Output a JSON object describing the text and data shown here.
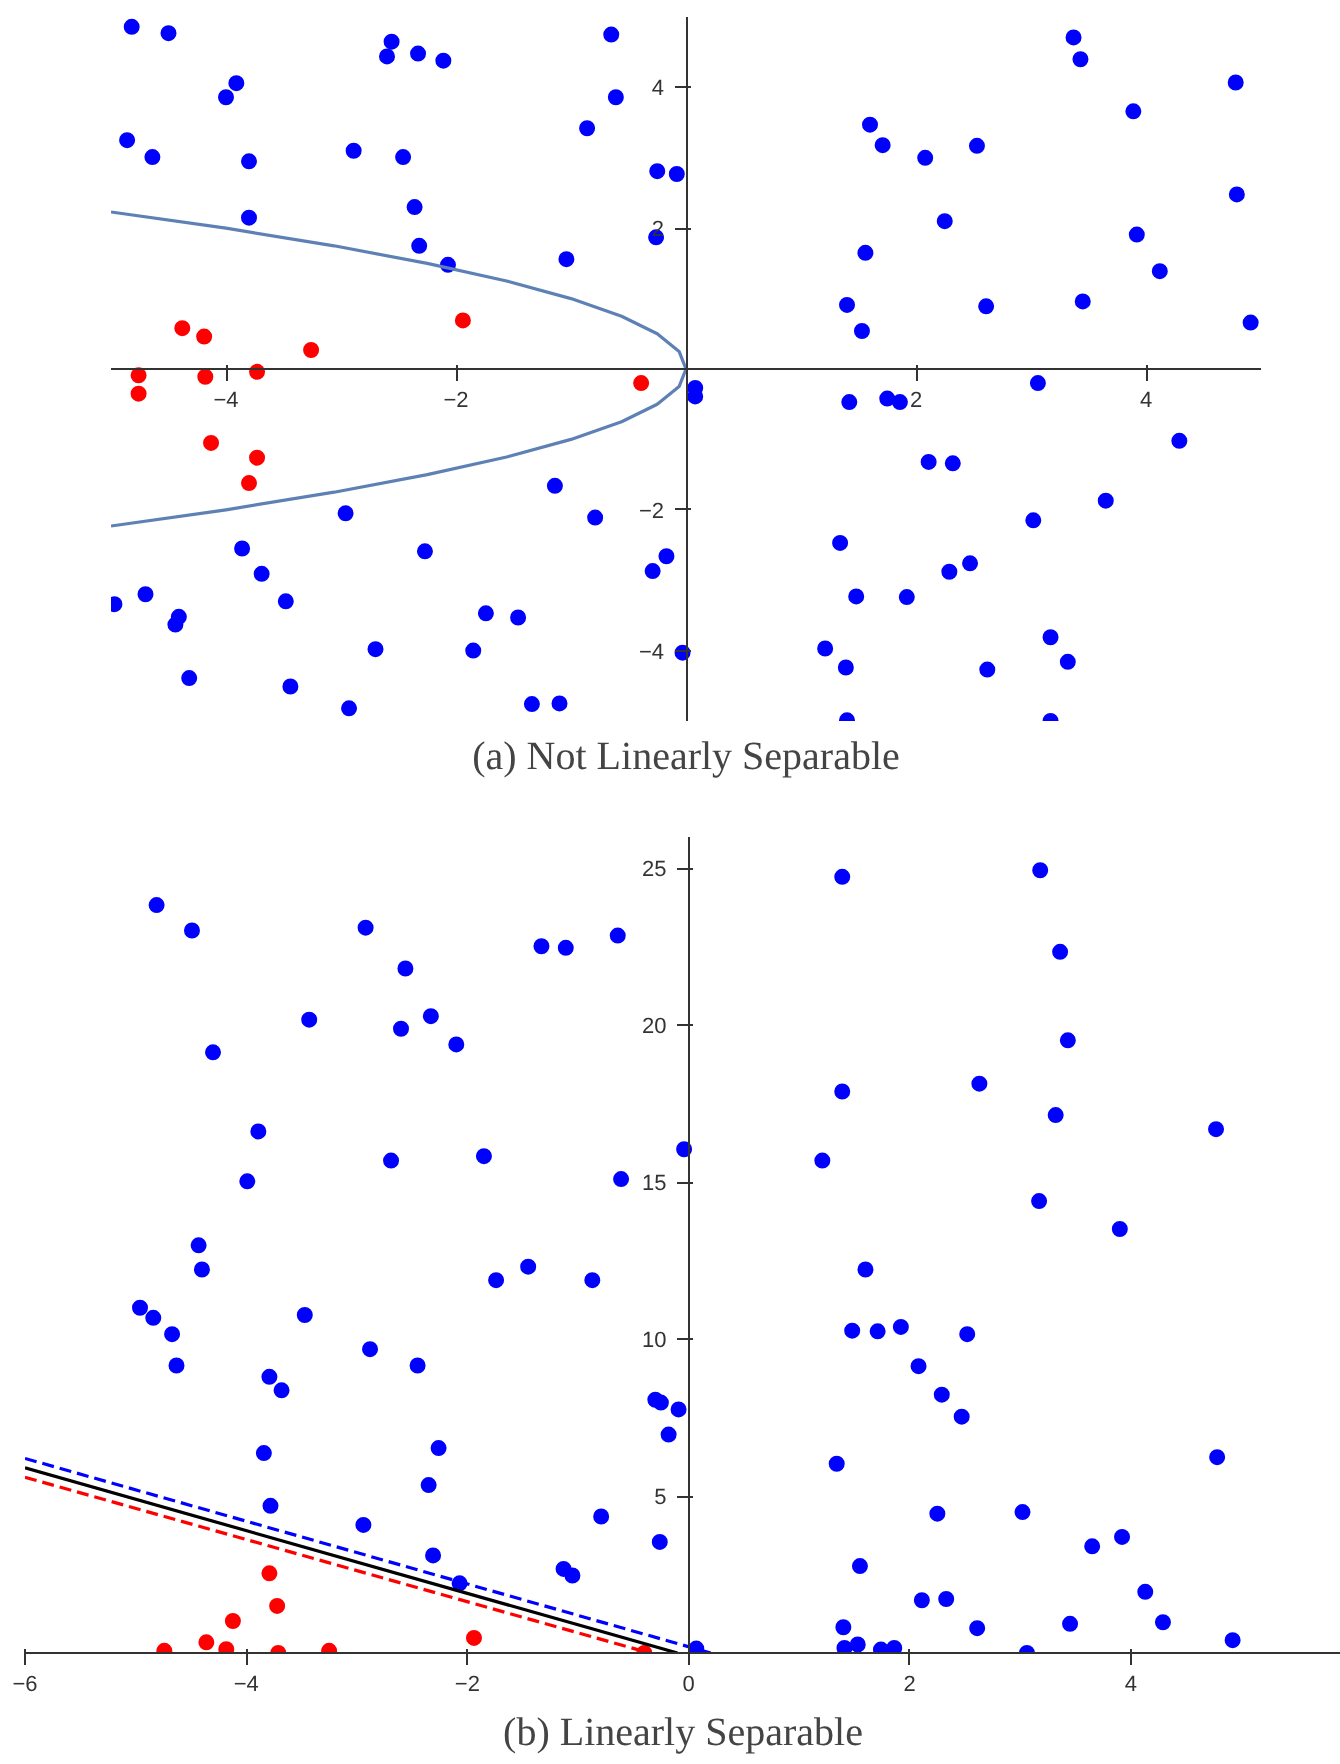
{
  "chart_data": [
    {
      "type": "scatter",
      "title": "(a) Not Linearly Separable",
      "xlim": [
        -5,
        5
      ],
      "ylim": [
        -5,
        5
      ],
      "xticks": [
        -4,
        -2,
        2,
        4
      ],
      "yticks": [
        -4,
        -2,
        2,
        4
      ],
      "series": [
        {
          "color": "#0000ff",
          "marker": "circle",
          "x": [
            -4.82,
            -4.5,
            -2.56,
            -2.6,
            -2.33,
            -2.11,
            -0.65,
            -3.91,
            -4.0,
            -0.61,
            -0.86,
            -4.86,
            -4.64,
            -3.8,
            -2.89,
            -2.46,
            -0.25,
            -0.08,
            -2.36,
            -3.8,
            -2.32,
            -2.07,
            -1.04,
            -0.26,
            -1.14,
            -2.96,
            -0.79,
            -3.86,
            -2.27,
            -0.17,
            -0.29,
            -3.69,
            -4.7,
            -4.97,
            -3.48,
            -4.41,
            -4.44,
            -1.74,
            -1.46,
            -2.7,
            -1.85,
            -0.03,
            -4.32,
            -3.44,
            -2.93,
            -1.34,
            -1.1,
            3.37,
            3.43,
            4.78,
            3.89,
            1.6,
            1.71,
            2.08,
            2.53,
            2.25,
            4.79,
            3.92,
            1.56,
            4.12,
            1.4,
            2.61,
            3.45,
            1.53,
            4.91,
            0.08,
            0.08,
            3.06,
            1.42,
            1.75,
            1.86,
            4.29,
            2.11,
            2.32,
            3.65,
            3.02,
            1.34,
            2.47,
            2.29,
            1.48,
            1.92,
            3.17,
            1.21,
            3.32,
            1.39,
            2.62,
            1.4,
            3.17
          ],
          "values": [
            4.86,
            4.77,
            4.65,
            4.44,
            4.48,
            4.38,
            4.75,
            4.06,
            3.86,
            3.86,
            3.42,
            3.25,
            3.01,
            2.95,
            3.1,
            3.01,
            2.81,
            2.77,
            2.3,
            2.15,
            1.75,
            1.48,
            1.56,
            1.87,
            -1.66,
            -2.05,
            -2.11,
            -2.55,
            -2.59,
            -2.66,
            -2.87,
            -2.91,
            -3.2,
            -3.34,
            -3.3,
            -3.52,
            -3.63,
            -3.47,
            -3.53,
            -3.98,
            -4.0,
            -4.03,
            -4.39,
            -4.51,
            -4.82,
            -4.76,
            -4.75,
            4.71,
            4.4,
            4.07,
            3.66,
            3.47,
            3.18,
            3.0,
            3.17,
            2.1,
            2.48,
            1.91,
            1.65,
            1.39,
            0.91,
            0.89,
            0.96,
            0.54,
            0.66,
            -0.27,
            -0.39,
            -0.2,
            -0.47,
            -0.42,
            -0.47,
            -1.02,
            -1.32,
            -1.34,
            -1.87,
            -2.15,
            -2.47,
            -2.76,
            -2.88,
            -3.23,
            -3.24,
            -3.81,
            -3.97,
            -4.16,
            -4.24,
            -4.27,
            -4.99,
            -5.0
          ]
        },
        {
          "color": "#ff0000",
          "marker": "circle",
          "x": [
            -4.38,
            -4.19,
            -3.26,
            -1.94,
            -4.76,
            -4.76,
            -4.18,
            -3.73,
            -0.39,
            -4.13,
            -3.73,
            -3.8
          ],
          "values": [
            0.58,
            0.46,
            0.27,
            0.69,
            -0.09,
            -0.35,
            -0.11,
            -0.04,
            -0.2,
            -1.05,
            -1.26,
            -1.62
          ]
        },
        {
          "type": "line",
          "color": "#5e81b5",
          "x": [
            -5.0,
            -4.0,
            -3.06,
            -2.25,
            -1.56,
            -1.0,
            -0.56,
            -0.25,
            -0.06,
            0,
            -0.06,
            -0.25,
            -0.56,
            -1.0,
            -1.56,
            -2.25,
            -3.06,
            -4.0,
            -5.0
          ],
          "values": [
            2.23,
            2.0,
            1.75,
            1.5,
            1.25,
            1.0,
            0.75,
            0.5,
            0.25,
            0,
            -0.25,
            -0.5,
            -0.75,
            -1.0,
            -1.25,
            -1.5,
            -1.75,
            -2.0,
            -2.23
          ]
        }
      ]
    },
    {
      "type": "scatter",
      "title": "(b) Linearly Separable",
      "xlim": [
        -6,
        5.9
      ],
      "ylim": [
        0,
        26
      ],
      "xticks": [
        -6,
        -4,
        -2,
        0,
        2,
        4
      ],
      "yticks": [
        5,
        10,
        15,
        20,
        25
      ],
      "series": [
        {
          "color": "#0000ff",
          "marker": "circle",
          "x": [
            -4.81,
            -4.49,
            -2.92,
            -2.56,
            -1.33,
            -1.11,
            -0.64,
            -3.43,
            -2.6,
            -2.33,
            -2.1,
            -4.3,
            -3.89,
            -3.99,
            -2.69,
            -1.85,
            -0.61,
            -0.04,
            -4.43,
            -4.4,
            -1.45,
            -1.74,
            -0.87,
            -4.96,
            -4.84,
            -3.47,
            -4.67,
            -4.63,
            -2.88,
            -2.45,
            -3.79,
            -3.68,
            -0.3,
            -0.25,
            -0.09,
            -0.18,
            -3.84,
            -2.26,
            -2.35,
            -3.78,
            -0.79,
            -2.94,
            -0.26,
            -2.31,
            -1.13,
            -1.05,
            -2.07,
            0.07,
            1.39,
            3.18,
            3.36,
            3.43,
            1.39,
            2.63,
            3.32,
            4.77,
            1.21,
            3.17,
            3.9,
            1.6,
            1.48,
            1.71,
            1.92,
            2.52,
            2.08,
            2.29,
            2.47,
            1.34,
            4.78,
            2.25,
            3.02,
            3.65,
            3.92,
            1.55,
            2.11,
            2.33,
            4.13,
            1.4,
            2.61,
            3.45,
            4.29,
            4.92,
            1.41,
            1.53,
            1.74,
            1.86,
            3.06
          ],
          "values": [
            23.83,
            23.02,
            23.11,
            21.81,
            22.52,
            22.47,
            22.86,
            20.18,
            19.89,
            20.29,
            19.39,
            19.14,
            16.62,
            15.03,
            15.69,
            15.83,
            15.1,
            16.05,
            12.99,
            12.22,
            12.31,
            11.88,
            11.88,
            11.0,
            10.68,
            10.77,
            10.16,
            9.16,
            9.68,
            9.16,
            8.8,
            8.37,
            8.07,
            7.98,
            7.76,
            6.96,
            6.37,
            6.53,
            5.35,
            4.69,
            4.35,
            4.08,
            3.54,
            3.11,
            2.68,
            2.47,
            2.22,
            0.14,
            24.73,
            24.94,
            22.34,
            19.52,
            17.89,
            18.14,
            17.14,
            16.69,
            15.69,
            14.4,
            13.51,
            12.22,
            10.27,
            10.25,
            10.39,
            10.16,
            9.14,
            8.23,
            7.53,
            6.03,
            6.24,
            4.44,
            4.49,
            3.4,
            3.7,
            2.77,
            1.68,
            1.72,
            1.95,
            0.82,
            0.79,
            0.93,
            0.98,
            0.41,
            0.16,
            0.27,
            0.11,
            0.16,
            0
          ]
        },
        {
          "color": "#ff0000",
          "marker": "circle",
          "x": [
            -3.79,
            -3.72,
            -4.12,
            -4.36,
            -4.74,
            -4.18,
            -3.71,
            -3.25,
            -1.94,
            -0.4
          ],
          "values": [
            2.54,
            1.5,
            1.02,
            0.34,
            0.07,
            0.12,
            0,
            0.07,
            0.48,
            0
          ]
        },
        {
          "type": "line",
          "color": "#0000ff",
          "line_style": "dashed",
          "x": [
            -6,
            0.2
          ],
          "values": [
            6.2,
            0
          ]
        },
        {
          "type": "line",
          "color": "#000000",
          "line_style": "solid",
          "x": [
            -6,
            -0.1
          ],
          "values": [
            5.9,
            0
          ]
        },
        {
          "type": "line",
          "color": "#ff0000",
          "line_style": "dashed",
          "x": [
            -6,
            -0.35
          ],
          "values": [
            5.6,
            0
          ]
        }
      ]
    }
  ]
}
